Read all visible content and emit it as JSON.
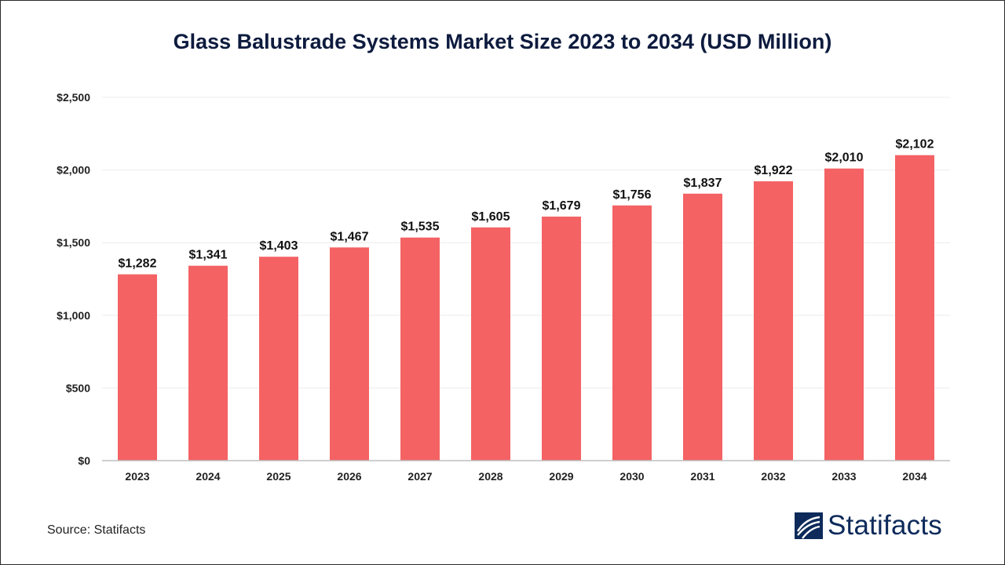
{
  "chart_data": {
    "type": "bar",
    "title": "Glass Balustrade Systems Market Size 2023 to 2034 (USD Million)",
    "categories": [
      "2023",
      "2024",
      "2025",
      "2026",
      "2027",
      "2028",
      "2029",
      "2030",
      "2031",
      "2032",
      "2033",
      "2034"
    ],
    "values": [
      1282,
      1341,
      1403,
      1467,
      1535,
      1605,
      1679,
      1756,
      1837,
      1922,
      2010,
      2102
    ],
    "value_labels": [
      "$1,282",
      "$1,341",
      "$1,403",
      "$1,467",
      "$1,535",
      "$1,605",
      "$1,679",
      "$1,756",
      "$1,837",
      "$1,922",
      "$2,010",
      "$2,102"
    ],
    "yticks": [
      0,
      500,
      1000,
      1500,
      2000,
      2500
    ],
    "ytick_labels": [
      "$0",
      "$500",
      "$1,000",
      "$1,500",
      "$2,000",
      "$2,500"
    ],
    "ylim": [
      0,
      2500
    ],
    "xlabel": "",
    "ylabel": "",
    "grid": true,
    "legend": "none",
    "bar_color": "#f46264"
  },
  "source": "Source: Statifacts",
  "brand": {
    "name": "Statifacts",
    "color": "#0d2a5a"
  }
}
